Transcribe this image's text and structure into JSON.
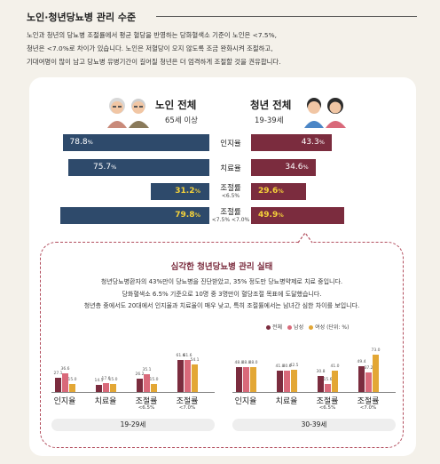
{
  "header": {
    "title": "노인·청년당뇨병 관리 수준",
    "desc_lines": [
      "노인과 청년의 당뇨병 조절률에서 평균 혈당을 반영하는 당화혈색소 기준이 노인은 <7.5%,",
      "청년은 <7.0%로 차이가 있습니다. 노인은 저혈당이 오지 않도록 조금 완화시켜 조절하고,",
      "기대여명이 많이 남고 당뇨병 유병기간이 길어질 청년은 더 엄격하게 조절할 것을 권유합니다."
    ]
  },
  "groups": {
    "senior": {
      "title": "노인 전체",
      "subtitle": "65세 이상"
    },
    "youth": {
      "title": "청년 전체",
      "subtitle": "19-39세"
    }
  },
  "chart_data": [
    {
      "type": "bar",
      "categories": [
        "인지율",
        "치료율",
        "조절률 <6.5%",
        "조절률 <7.5% <7.0%"
      ],
      "series": [
        {
          "name": "노인 전체",
          "values": [
            78.8,
            75.7,
            31.2,
            79.8
          ]
        },
        {
          "name": "청년 전체",
          "values": [
            43.3,
            34.6,
            29.6,
            49.9
          ]
        }
      ],
      "unit": "%"
    },
    {
      "type": "bar",
      "title": "19-29세",
      "categories": [
        "인지율",
        "치료율",
        "조절률 <6.5%",
        "조절률 <7.0%"
      ],
      "series": [
        {
          "name": "전체",
          "values": [
            27.1,
            14.5,
            26.2,
            61.6
          ]
        },
        {
          "name": "남성",
          "values": [
            36.6,
            17.6,
            35.1,
            61.6
          ]
        },
        {
          "name": "여성",
          "values": [
            15.0,
            15.0,
            15.0,
            54.1
          ]
        }
      ],
      "ylim": [
        0,
        80
      ]
    },
    {
      "type": "bar",
      "title": "30-39세",
      "categories": [
        "인지율",
        "치료율",
        "조절률 <6.5%",
        "조절률 <7.0%"
      ],
      "series": [
        {
          "name": "전체",
          "values": [
            48.0,
            41.0,
            30.8,
            49.4
          ]
        },
        {
          "name": "남성",
          "values": [
            48.0,
            40.6,
            15.6,
            37.2
          ]
        },
        {
          "name": "여성",
          "values": [
            48.0,
            42.5,
            41.0,
            73.0
          ]
        }
      ],
      "ylim": [
        0,
        80
      ]
    }
  ],
  "main_labels": {
    "awareness": "인지율",
    "treatment": "치료율",
    "control": "조절률",
    "control_sub_1": "<6.5%",
    "control_sub_2": "<7.5%  <7.0%",
    "values_senior": [
      "78.8",
      "75.7",
      "31.2",
      "79.8"
    ],
    "values_youth": [
      "43.3",
      "34.6",
      "29.6",
      "49.9"
    ],
    "pct": "%"
  },
  "detail": {
    "title": "심각한 청년당뇨병 관리 실태",
    "lines": [
      "청년당뇨병환자의 43%만이 당뇨병을 진단받았고, 35% 정도만 당뇨병약제로 치료 중입니다.",
      "당화혈색소 6.5% 기준으로 10명 중 3명만이 혈당조절 목표에 도달했습니다.",
      "청년층 중에서도 20대에서 인지율과 치료율이 매우 낮고, 특히 조절률에서는 남녀간 심한 차이를 보입니다."
    ],
    "legend": {
      "total": "전체",
      "male": "남성",
      "female": "여성",
      "unit": "(단위: %)"
    },
    "age_labels": [
      "19-29세",
      "30-39세"
    ],
    "cats": [
      "인지율",
      "치료율",
      "조절률",
      "조절률"
    ],
    "cat_subs": [
      "",
      "",
      "<6.5%",
      "<7.0%"
    ]
  },
  "colors": {
    "blue": "#2e4a6b",
    "red": "#7b2c3e",
    "pink": "#d9697a",
    "gold": "#e3a735",
    "yellow_text": "#f5d23a"
  }
}
